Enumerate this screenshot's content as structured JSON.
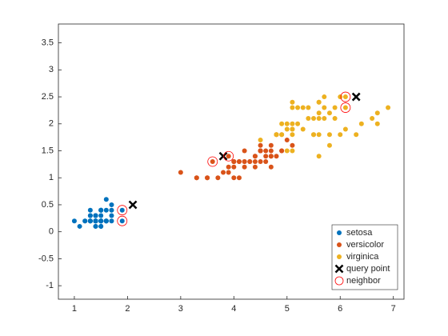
{
  "chart_data": {
    "type": "scatter",
    "xlim": [
      0.7,
      7.2
    ],
    "ylim": [
      -1.25,
      3.85
    ],
    "xticks": [
      1,
      2,
      3,
      4,
      5,
      6,
      7
    ],
    "yticks": [
      -1,
      -0.5,
      0,
      0.5,
      1,
      1.5,
      2,
      2.5,
      3,
      3.5
    ],
    "legend": "bottom-right",
    "series": [
      {
        "name": "setosa",
        "color": "#0072BD",
        "marker": "dot",
        "x": [
          1.4,
          1.4,
          1.3,
          1.5,
          1.4,
          1.7,
          1.4,
          1.5,
          1.4,
          1.5,
          1.5,
          1.6,
          1.4,
          1.1,
          1.2,
          1.5,
          1.3,
          1.4,
          1.7,
          1.5,
          1.7,
          1.5,
          1.0,
          1.7,
          1.9,
          1.6,
          1.6,
          1.5,
          1.4,
          1.6,
          1.6,
          1.5,
          1.5,
          1.4,
          1.5,
          1.2,
          1.3,
          1.4,
          1.3,
          1.5,
          1.3,
          1.3,
          1.3,
          1.6,
          1.9,
          1.4,
          1.6,
          1.4,
          1.5,
          1.4
        ],
        "y": [
          0.2,
          0.2,
          0.2,
          0.2,
          0.2,
          0.4,
          0.3,
          0.2,
          0.2,
          0.1,
          0.2,
          0.2,
          0.1,
          0.1,
          0.2,
          0.4,
          0.4,
          0.3,
          0.3,
          0.3,
          0.2,
          0.4,
          0.2,
          0.5,
          0.2,
          0.2,
          0.4,
          0.2,
          0.2,
          0.2,
          0.2,
          0.4,
          0.1,
          0.2,
          0.2,
          0.2,
          0.2,
          0.1,
          0.2,
          0.2,
          0.3,
          0.3,
          0.2,
          0.6,
          0.4,
          0.3,
          0.2,
          0.2,
          0.2,
          0.2
        ]
      },
      {
        "name": "versicolor",
        "color": "#D95319",
        "marker": "dot",
        "x": [
          4.7,
          4.5,
          4.9,
          4.0,
          4.6,
          4.5,
          4.7,
          3.3,
          4.6,
          3.9,
          3.5,
          4.2,
          4.0,
          4.7,
          3.6,
          4.4,
          4.5,
          4.1,
          4.5,
          3.9,
          4.8,
          4.0,
          4.9,
          4.7,
          4.3,
          4.4,
          4.8,
          5.0,
          4.5,
          3.5,
          3.8,
          3.7,
          3.9,
          5.1,
          4.5,
          4.5,
          4.7,
          4.4,
          4.1,
          4.0,
          4.4,
          4.6,
          4.0,
          3.3,
          4.2,
          4.2,
          4.2,
          4.3,
          3.0,
          4.1
        ],
        "y": [
          1.4,
          1.5,
          1.5,
          1.3,
          1.5,
          1.3,
          1.6,
          1.0,
          1.3,
          1.4,
          1.0,
          1.5,
          1.0,
          1.4,
          1.3,
          1.4,
          1.5,
          1.0,
          1.5,
          1.1,
          1.8,
          1.3,
          1.5,
          1.2,
          1.3,
          1.4,
          1.4,
          1.7,
          1.5,
          1.0,
          1.1,
          1.0,
          1.2,
          1.6,
          1.5,
          1.6,
          1.5,
          1.3,
          1.3,
          1.3,
          1.2,
          1.4,
          1.2,
          1.0,
          1.3,
          1.2,
          1.3,
          1.3,
          1.1,
          1.3
        ]
      },
      {
        "name": "virginica",
        "color": "#EDB120",
        "marker": "dot",
        "x": [
          6.0,
          5.1,
          5.9,
          5.6,
          5.8,
          6.6,
          4.5,
          6.3,
          5.8,
          6.1,
          5.1,
          5.3,
          5.5,
          5.0,
          5.1,
          5.3,
          5.5,
          6.7,
          6.9,
          5.0,
          5.7,
          4.9,
          6.7,
          4.9,
          5.7,
          6.0,
          4.8,
          4.9,
          5.6,
          5.8,
          6.1,
          6.4,
          5.6,
          5.1,
          5.6,
          6.1,
          5.6,
          5.5,
          4.8,
          5.4,
          5.6,
          5.1,
          5.1,
          5.9,
          5.7,
          5.2,
          5.0,
          5.2,
          5.4,
          5.1
        ],
        "y": [
          2.5,
          1.9,
          2.1,
          1.8,
          2.2,
          2.1,
          1.7,
          1.8,
          1.8,
          2.5,
          2.0,
          1.9,
          2.1,
          2.0,
          2.4,
          2.3,
          1.8,
          2.2,
          2.3,
          1.5,
          2.3,
          2.0,
          2.0,
          1.8,
          2.1,
          1.8,
          1.8,
          1.8,
          2.1,
          1.6,
          1.9,
          2.0,
          2.2,
          1.5,
          1.4,
          2.3,
          2.4,
          1.8,
          1.8,
          2.1,
          2.4,
          2.3,
          1.9,
          2.3,
          2.5,
          2.3,
          1.9,
          2.0,
          2.3,
          1.8
        ]
      },
      {
        "name": "query point",
        "color": "#000000",
        "marker": "x",
        "x": [
          2.1,
          3.8,
          6.3
        ],
        "y": [
          0.5,
          1.4,
          2.5
        ]
      },
      {
        "name": "neighbor",
        "color": "#FF0000",
        "marker": "circle",
        "x": [
          1.9,
          1.9,
          3.6,
          3.9,
          6.1,
          6.1
        ],
        "y": [
          0.4,
          0.2,
          1.3,
          1.4,
          2.5,
          2.3
        ]
      }
    ]
  }
}
